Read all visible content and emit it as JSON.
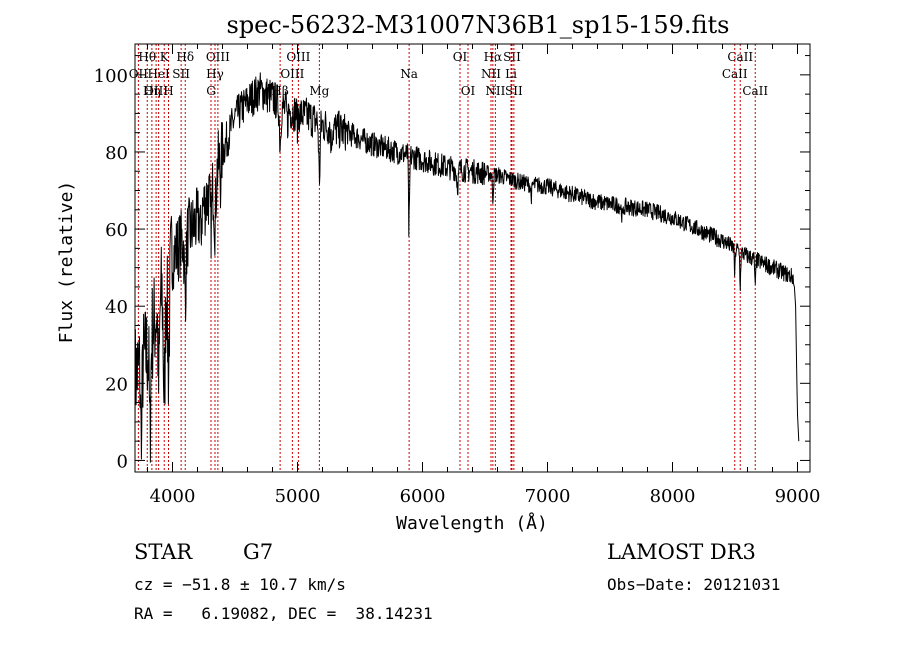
{
  "chart_data": {
    "type": "line",
    "title": "spec-56232-M31007N36B1_sp15-159.fits",
    "xlabel": "Wavelength (Å)",
    "ylabel": "Flux (relative)",
    "xlim": [
      3700,
      9100
    ],
    "ylim": [
      -3,
      108
    ],
    "xticks": [
      4000,
      5000,
      6000,
      7000,
      8000,
      9000
    ],
    "yticks": [
      0,
      20,
      40,
      60,
      80,
      100
    ],
    "line_color": "#000000",
    "marker_color": "#cc0000",
    "continuum": [
      [
        3700,
        22
      ],
      [
        3800,
        28
      ],
      [
        3900,
        42
      ],
      [
        4000,
        53
      ],
      [
        4100,
        58
      ],
      [
        4200,
        62
      ],
      [
        4300,
        70
      ],
      [
        4400,
        80
      ],
      [
        4500,
        89
      ],
      [
        4600,
        93
      ],
      [
        4700,
        96
      ],
      [
        4800,
        94
      ],
      [
        4900,
        91
      ],
      [
        5000,
        90
      ],
      [
        5100,
        89
      ],
      [
        5200,
        87
      ],
      [
        5400,
        85
      ],
      [
        5600,
        82
      ],
      [
        5800,
        80
      ],
      [
        6000,
        78
      ],
      [
        6200,
        76
      ],
      [
        6400,
        75
      ],
      [
        6600,
        74
      ],
      [
        6800,
        72
      ],
      [
        7000,
        71
      ],
      [
        7200,
        69
      ],
      [
        7400,
        67
      ],
      [
        7600,
        66
      ],
      [
        7800,
        65
      ],
      [
        8000,
        63
      ],
      [
        8200,
        60
      ],
      [
        8400,
        57
      ],
      [
        8600,
        53
      ],
      [
        8800,
        50
      ],
      [
        9000,
        47
      ]
    ],
    "absorption": [
      [
        3750,
        20,
        8
      ],
      [
        3820,
        25,
        8
      ],
      [
        3890,
        22,
        8
      ],
      [
        3934,
        30,
        10
      ],
      [
        3968,
        25,
        10
      ],
      [
        4102,
        15,
        10
      ],
      [
        4226,
        6,
        6
      ],
      [
        4308,
        10,
        10
      ],
      [
        4340,
        12,
        10
      ],
      [
        4384,
        5,
        5
      ],
      [
        4861,
        10,
        8
      ],
      [
        4920,
        4,
        5
      ],
      [
        5000,
        3,
        5
      ],
      [
        5175,
        14,
        8
      ],
      [
        5270,
        4,
        6
      ],
      [
        5890,
        18,
        4
      ],
      [
        5896,
        12,
        4
      ],
      [
        6280,
        4,
        10
      ],
      [
        6563,
        6,
        6
      ],
      [
        6870,
        3,
        8
      ],
      [
        7600,
        3,
        10
      ],
      [
        8498,
        7,
        5
      ],
      [
        8542,
        9,
        5
      ],
      [
        8662,
        8,
        5
      ]
    ],
    "end_drop": [
      [
        8975,
        45
      ],
      [
        8985,
        40
      ],
      [
        8995,
        20
      ],
      [
        9000,
        12
      ],
      [
        9010,
        5
      ]
    ],
    "markers": [
      {
        "label": "Hθ",
        "x": 3798,
        "row": 1
      },
      {
        "label": "OII",
        "x": 3727,
        "row": 2
      },
      {
        "label": "OIII",
        "x": 3869,
        "row": 3
      },
      {
        "label": "Hη",
        "x": 3835,
        "row": 3
      },
      {
        "label": "K",
        "x": 3934,
        "row": 1
      },
      {
        "label": "HeI",
        "x": 3889,
        "row": 2
      },
      {
        "label": "H",
        "x": 3968,
        "row": 3
      },
      {
        "label": "Hδ",
        "x": 4102,
        "row": 1
      },
      {
        "label": "SII",
        "x": 4069,
        "row": 2
      },
      {
        "label": "OIII",
        "x": 4363,
        "row": 1
      },
      {
        "label": "Hγ",
        "x": 4340,
        "row": 2
      },
      {
        "label": "G",
        "x": 4308,
        "row": 3
      },
      {
        "label": "Hβ",
        "x": 4861,
        "row": 3
      },
      {
        "label": "OIII",
        "x": 5007,
        "row": 1
      },
      {
        "label": "OIII",
        "x": 4959,
        "row": 2
      },
      {
        "label": "Mg",
        "x": 5175,
        "row": 3
      },
      {
        "label": "Na",
        "x": 5893,
        "row": 2
      },
      {
        "label": "OI",
        "x": 6300,
        "row": 1
      },
      {
        "label": "OI",
        "x": 6364,
        "row": 3
      },
      {
        "label": "Hα",
        "x": 6563,
        "row": 1
      },
      {
        "label": "NII",
        "x": 6548,
        "row": 2
      },
      {
        "label": "NII",
        "x": 6583,
        "row": 3
      },
      {
        "label": "SII",
        "x": 6716,
        "row": 1
      },
      {
        "label": "Li",
        "x": 6708,
        "row": 2
      },
      {
        "label": "SII",
        "x": 6731,
        "row": 3
      },
      {
        "label": "CaII",
        "x": 8542,
        "row": 1
      },
      {
        "label": "CaII",
        "x": 8498,
        "row": 2
      },
      {
        "label": "CaII",
        "x": 8662,
        "row": 3
      }
    ]
  },
  "info": {
    "class_label": "STAR",
    "subclass": "G7",
    "survey": "LAMOST DR3",
    "cz": "cz = −51.8 ± 10.7 km/s",
    "obs_date": "Obs−Date: 20121031",
    "coords": "RA =   6.19082, DEC =  38.14231"
  }
}
